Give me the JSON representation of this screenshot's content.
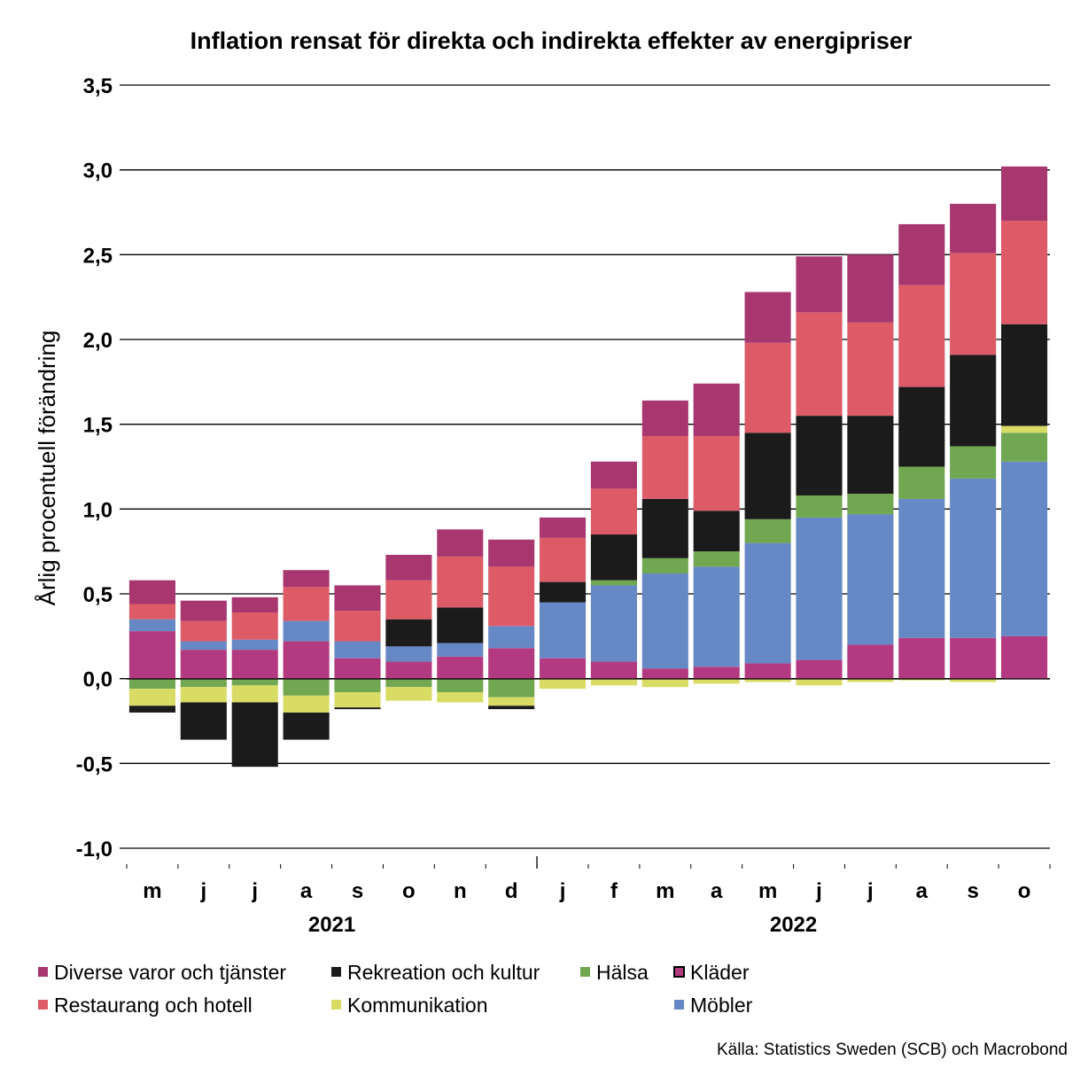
{
  "chart_data": {
    "type": "bar",
    "stacked": true,
    "title": "Inflation rensat för direkta och indirekta effekter av energipriser",
    "ylabel": "Årlig procentuell förändring",
    "ylim": [
      -1.0,
      3.5
    ],
    "yticks": [
      -1.0,
      -0.5,
      0.0,
      0.5,
      1.0,
      1.5,
      2.0,
      2.5,
      3.0,
      3.5
    ],
    "ytick_labels": [
      "-1,0",
      "-0,5",
      "0,0",
      "0,5",
      "1,0",
      "1,5",
      "2,0",
      "2,5",
      "3,0",
      "3,5"
    ],
    "grid": true,
    "categories": [
      "m",
      "j",
      "j",
      "a",
      "s",
      "o",
      "n",
      "d",
      "j",
      "f",
      "m",
      "a",
      "m",
      "j",
      "j",
      "a",
      "s",
      "o"
    ],
    "year_labels": [
      {
        "label": "2021",
        "start": 0,
        "end": 7
      },
      {
        "label": "2022",
        "start": 8,
        "end": 17
      }
    ],
    "legend_position": "bottom",
    "series": [
      {
        "name": "Kläder",
        "color": "#b33a80",
        "values": [
          0.28,
          0.17,
          0.17,
          0.22,
          0.12,
          0.1,
          0.13,
          0.18,
          0.12,
          0.1,
          0.06,
          0.07,
          0.09,
          0.11,
          0.2,
          0.24,
          0.24,
          0.25
        ]
      },
      {
        "name": "Möbler",
        "color": "#6688c4",
        "values": [
          0.07,
          0.05,
          0.06,
          0.12,
          0.1,
          0.09,
          0.08,
          0.13,
          0.33,
          0.45,
          0.56,
          0.59,
          0.71,
          0.84,
          0.77,
          0.82,
          0.94,
          1.03
        ]
      },
      {
        "name": "Hälsa",
        "color": "#72a752",
        "values": [
          -0.06,
          -0.05,
          -0.04,
          -0.1,
          -0.08,
          -0.05,
          -0.08,
          -0.11,
          0.0,
          0.03,
          0.09,
          0.09,
          0.14,
          0.13,
          0.12,
          0.19,
          0.19,
          0.17
        ]
      },
      {
        "name": "Kommunikation",
        "color": "#d9dc64",
        "values": [
          -0.1,
          -0.09,
          -0.1,
          -0.1,
          -0.09,
          -0.08,
          -0.06,
          -0.05,
          -0.06,
          -0.04,
          -0.05,
          -0.03,
          -0.02,
          -0.04,
          -0.02,
          -0.01,
          -0.02,
          0.04
        ]
      },
      {
        "name": "Rekreation och kultur",
        "color": "#1b1b1b",
        "values": [
          -0.04,
          -0.22,
          -0.38,
          -0.16,
          -0.01,
          0.16,
          0.21,
          -0.02,
          0.12,
          0.27,
          0.35,
          0.24,
          0.51,
          0.47,
          0.46,
          0.47,
          0.54,
          0.6
        ]
      },
      {
        "name": "Restaurang och hotell",
        "color": "#dd5a67",
        "values": [
          0.09,
          0.12,
          0.16,
          0.2,
          0.18,
          0.23,
          0.3,
          0.35,
          0.26,
          0.27,
          0.37,
          0.44,
          0.53,
          0.61,
          0.55,
          0.6,
          0.6,
          0.61
        ]
      },
      {
        "name": "Diverse varor och tjänster",
        "color": "#a8376f",
        "values": [
          0.14,
          0.12,
          0.09,
          0.1,
          0.15,
          0.15,
          0.16,
          0.16,
          0.12,
          0.16,
          0.21,
          0.31,
          0.3,
          0.33,
          0.4,
          0.36,
          0.29,
          0.32
        ]
      }
    ],
    "legend_rows": [
      [
        "Diverse varor och tjänster",
        "Rekreation och kultur",
        "Hälsa",
        "Kläder"
      ],
      [
        "Restaurang och hotell",
        "Kommunikation",
        "",
        "Möbler"
      ]
    ]
  },
  "source": "Källa: Statistics Sweden (SCB) och Macrobond"
}
